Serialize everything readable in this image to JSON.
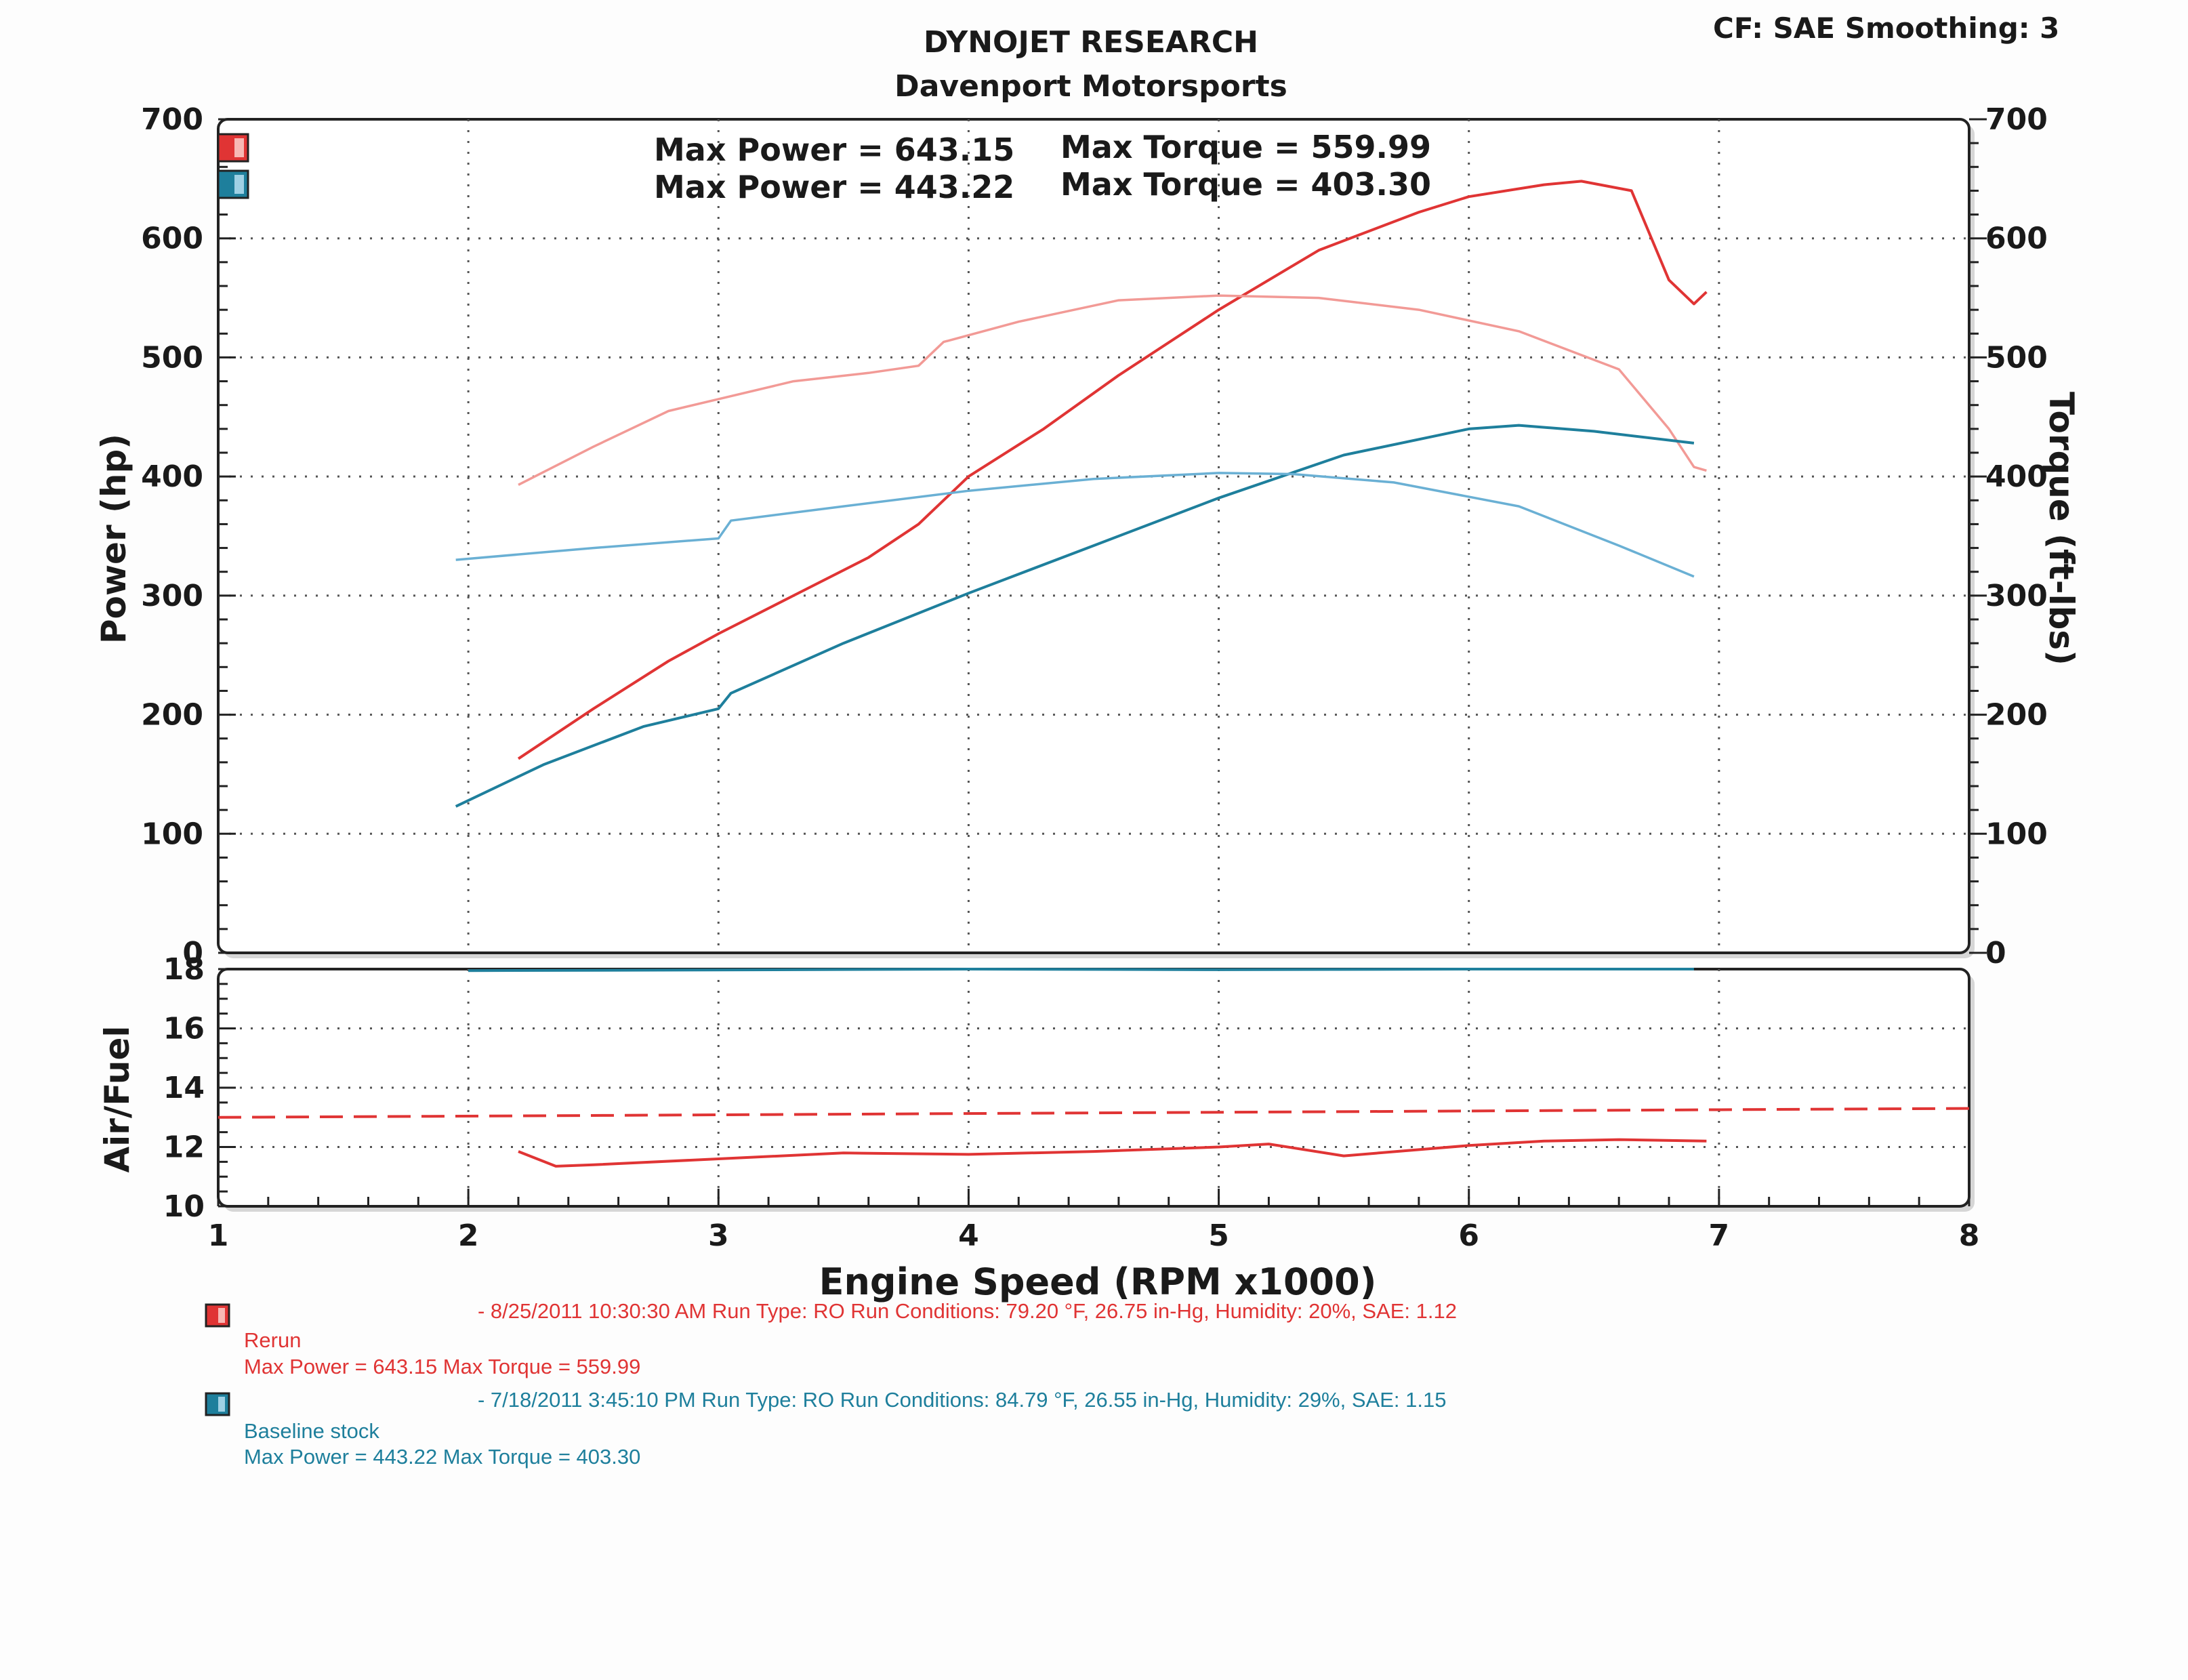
{
  "header": {
    "company": "DYNOJET RESEARCH",
    "shop": "Davenport Motorsports",
    "corner": "CF: SAE  Smoothing: 3"
  },
  "colors": {
    "rerun": "#e03434",
    "rerun_light": "#f29a96",
    "baseline": "#1e7f9c",
    "baseline_light": "#6ab0d4",
    "grid": "#555555"
  },
  "chart_data": [
    {
      "type": "line",
      "name": "power-torque",
      "xlabel": "Engine Speed (RPM x1000)",
      "ylabel": "Power (hp)",
      "y2label": "Torque (ft-lbs)",
      "xlim": [
        1,
        8
      ],
      "ylim": [
        0,
        700
      ],
      "y2lim": [
        0,
        700
      ],
      "xticks": [
        "1",
        "2",
        "3",
        "4",
        "5",
        "6",
        "7",
        "8"
      ],
      "yticks": [
        "0",
        "100",
        "200",
        "300",
        "400",
        "500",
        "600",
        "700"
      ],
      "y2ticks": [
        "0",
        "100",
        "200",
        "300",
        "400",
        "500",
        "600",
        "700"
      ],
      "summary": [
        {
          "run": "rerun",
          "power_label": "Max Power = 643.15",
          "torque_label": "Max Torque = 559.99"
        },
        {
          "run": "baseline",
          "power_label": "Max Power = 443.22",
          "torque_label": "Max Torque = 403.30"
        }
      ],
      "series": [
        {
          "run": "rerun",
          "kind": "power",
          "axis": "left",
          "x": [
            2.2,
            2.5,
            2.8,
            3.0,
            3.3,
            3.6,
            3.8,
            4.0,
            4.3,
            4.6,
            5.0,
            5.4,
            5.8,
            6.0,
            6.3,
            6.45,
            6.65,
            6.8,
            6.9,
            6.95
          ],
          "y": [
            163,
            205,
            245,
            268,
            300,
            332,
            360,
            400,
            440,
            485,
            540,
            590,
            622,
            635,
            645,
            648,
            640,
            565,
            545,
            555
          ]
        },
        {
          "run": "rerun",
          "kind": "torque",
          "axis": "right",
          "x": [
            2.2,
            2.5,
            2.8,
            3.0,
            3.3,
            3.6,
            3.8,
            3.9,
            4.2,
            4.6,
            5.0,
            5.4,
            5.8,
            6.2,
            6.6,
            6.8,
            6.9,
            6.95
          ],
          "y": [
            393,
            425,
            455,
            465,
            480,
            487,
            493,
            513,
            530,
            548,
            552,
            550,
            540,
            522,
            490,
            440,
            408,
            405
          ]
        },
        {
          "run": "baseline",
          "kind": "power",
          "axis": "left",
          "x": [
            1.95,
            2.3,
            2.7,
            3.0,
            3.05,
            3.5,
            4.0,
            4.5,
            5.0,
            5.5,
            6.0,
            6.2,
            6.5,
            6.9
          ],
          "y": [
            123,
            158,
            190,
            205,
            218,
            260,
            302,
            342,
            382,
            418,
            440,
            443,
            438,
            428
          ]
        },
        {
          "run": "baseline",
          "kind": "torque",
          "axis": "right",
          "x": [
            1.95,
            2.5,
            3.0,
            3.05,
            3.5,
            4.0,
            4.5,
            5.0,
            5.3,
            5.7,
            6.2,
            6.6,
            6.9
          ],
          "y": [
            330,
            340,
            348,
            363,
            375,
            388,
            398,
            403,
            402,
            395,
            375,
            342,
            316
          ]
        }
      ]
    },
    {
      "type": "line",
      "name": "air-fuel",
      "ylabel": "Air/Fuel",
      "xlim": [
        1,
        8
      ],
      "ylim": [
        10,
        18
      ],
      "xticks": [
        "1",
        "2",
        "3",
        "4",
        "5",
        "6",
        "7",
        "8"
      ],
      "yticks": [
        "10",
        "12",
        "14",
        "16",
        "18"
      ],
      "series": [
        {
          "run": "baseline",
          "kind": "afr",
          "x": [
            2.0,
            3.0,
            4.0,
            5.0,
            6.0,
            6.9
          ],
          "y": [
            17.95,
            17.97,
            18.0,
            17.98,
            18.0,
            18.0
          ]
        },
        {
          "run": "rerun",
          "kind": "afr-target",
          "dashed": true,
          "x": [
            1.0,
            8.0
          ],
          "y": [
            13.0,
            13.3
          ]
        },
        {
          "run": "rerun",
          "kind": "afr",
          "x": [
            2.2,
            2.35,
            2.5,
            3.0,
            3.5,
            4.0,
            4.5,
            5.0,
            5.2,
            5.5,
            6.0,
            6.3,
            6.6,
            6.95
          ],
          "y": [
            11.85,
            11.35,
            11.4,
            11.6,
            11.8,
            11.75,
            11.85,
            12.0,
            12.1,
            11.7,
            12.05,
            12.2,
            12.25,
            12.2
          ]
        }
      ]
    }
  ],
  "legend": [
    {
      "run": "rerun",
      "info": "- 8/25/2011 10:30:30 AM  Run Type: RO  Run Conditions: 79.20 °F, 26.75 in-Hg,  Humidity:  20%, SAE: 1.12",
      "name": "Rerun",
      "summary": "Max Power = 643.15  Max Torque = 559.99"
    },
    {
      "run": "baseline",
      "info": "- 7/18/2011 3:45:10 PM  Run Type: RO  Run Conditions: 84.79 °F, 26.55 in-Hg,  Humidity:  29%, SAE: 1.15",
      "name": "Baseline stock",
      "summary": "Max Power = 443.22  Max Torque = 403.30"
    }
  ]
}
